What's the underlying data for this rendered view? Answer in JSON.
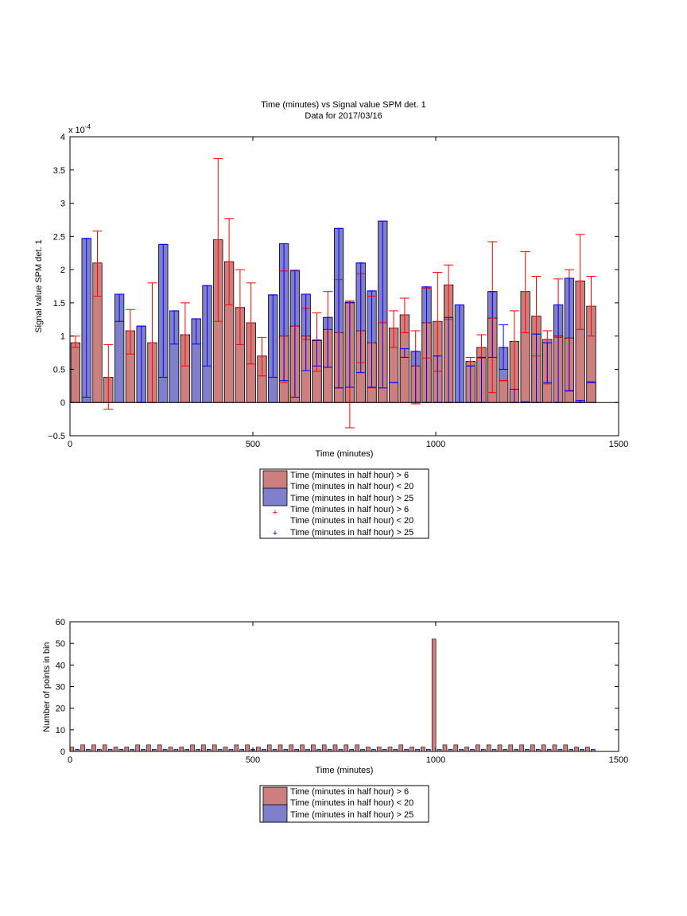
{
  "figure_title": [
    "Time (minutes) vs Signal value SPM det. 1",
    "Data for 2017/03/16"
  ],
  "colors": {
    "red_bar": "#cc7f7f",
    "blue_bar": "#7f7fcc",
    "red_err": "#ff0000",
    "blue_err": "#0000ff",
    "edge": "#000000"
  },
  "legend_top": [
    {
      "kind": "patch",
      "color": "red_bar",
      "text": [
        "Time (minutes in half hour) > 6",
        "Time (minutes in half hour) < 20"
      ]
    },
    {
      "kind": "patch",
      "color": "blue_bar",
      "text": [
        "Time (minutes in half hour) > 25"
      ]
    },
    {
      "kind": "marker",
      "color": "red_err",
      "text": [
        "Time (minutes in half hour) > 6",
        "Time (minutes in half hour) < 20"
      ]
    },
    {
      "kind": "marker",
      "color": "blue_err",
      "text": [
        "Time (minutes in half hour) > 25"
      ]
    }
  ],
  "legend_bottom": [
    {
      "kind": "patch",
      "color": "red_bar",
      "text": [
        "Time (minutes in half hour) > 6",
        "Time (minutes in half hour) < 20"
      ]
    },
    {
      "kind": "patch",
      "color": "blue_bar",
      "text": [
        "Time (minutes in half hour) > 25"
      ]
    }
  ],
  "chart_data": [
    {
      "type": "bar",
      "title": "Time (minutes) vs Signal value SPM det. 1",
      "subtitle": "Data for 2017/03/16",
      "xlabel": "Time (minutes)",
      "ylabel": "Signal value SPM det. 1",
      "exponent_label": "x 10",
      "exponent_power": "-4",
      "xlim": [
        0,
        1500
      ],
      "ylim": [
        -0.5,
        4
      ],
      "y_scale_note": "values in units of 1e-4",
      "xticks": [
        "0",
        "500",
        "1000",
        "1500"
      ],
      "yticks": [
        "−0.5",
        "0",
        "0.5",
        "1",
        "1.5",
        "2",
        "2.5",
        "3",
        "3.5",
        "4"
      ],
      "legend_position": "below",
      "series": [
        {
          "name": "Time (minutes in half hour) > 6 Time (minutes in half hour) < 20",
          "color": "red_bar",
          "x": [
            15,
            75,
            105,
            165,
            225,
            315,
            405,
            435,
            465,
            495,
            525,
            585,
            615,
            645,
            675,
            705,
            735,
            765,
            795,
            825,
            855,
            885,
            915,
            945,
            975,
            1005,
            1035,
            1095,
            1125,
            1155,
            1185,
            1215,
            1245,
            1275,
            1305,
            1335,
            1365,
            1395,
            1425
          ],
          "values": [
            0.9,
            2.1,
            0.38,
            1.08,
            0.9,
            1.02,
            2.45,
            2.12,
            1.43,
            1.2,
            0.7,
            1.0,
            1.15,
            1.0,
            0.93,
            1.1,
            1.05,
            1.5,
            1.08,
            0.9,
            1.2,
            1.12,
            1.32,
            0.55,
            1.2,
            1.22,
            1.77,
            0.62,
            0.83,
            1.27,
            0.33,
            0.92,
            1.67,
            1.3,
            0.95,
            1.0,
            0.97,
            1.83,
            1.45
          ],
          "err_low": [
            0.83,
            1.6,
            -0.1,
            0.73,
            0.0,
            0.55,
            1.22,
            1.47,
            0.87,
            0.58,
            0.4,
            0.3,
            0.08,
            0.95,
            0.47,
            0.53,
            0.22,
            -0.38,
            0.6,
            0.22,
            1.2,
            0.83,
            1.05,
            -0.02,
            0.67,
            0.47,
            1.25,
            0.55,
            0.67,
            0.15,
            0.33,
            0.2,
            1.05,
            0.7,
            0.28,
            0.98,
            0.17,
            1.1,
            1.0
          ],
          "err_high": [
            1.0,
            2.58,
            0.87,
            1.4,
            1.8,
            1.5,
            3.67,
            2.77,
            2.0,
            1.8,
            0.98,
            1.98,
            1.98,
            1.42,
            1.35,
            1.67,
            1.85,
            1.53,
            1.94,
            1.6,
            1.2,
            1.38,
            1.57,
            1.08,
            1.72,
            1.96,
            2.07,
            0.68,
            1.02,
            2.42,
            0.33,
            1.38,
            2.27,
            1.9,
            1.08,
            1.86,
            2.0,
            2.53,
            1.9
          ]
        },
        {
          "name": "Time (minutes in half hour) > 25",
          "color": "blue_bar",
          "x": [
            45,
            135,
            195,
            255,
            285,
            345,
            375,
            555,
            585,
            615,
            645,
            675,
            705,
            735,
            765,
            795,
            825,
            855,
            885,
            915,
            945,
            975,
            1005,
            1035,
            1065,
            1095,
            1125,
            1155,
            1185,
            1215,
            1245,
            1275,
            1305,
            1335,
            1365,
            1395,
            1425
          ],
          "values": [
            2.47,
            1.63,
            1.15,
            2.38,
            1.38,
            1.26,
            1.76,
            1.62,
            2.39,
            1.99,
            1.63,
            0.94,
            1.28,
            2.62,
            1.51,
            2.1,
            1.68,
            2.73,
            0.3,
            0.81,
            0.77,
            1.74,
            0.7,
            1.28,
            1.47,
            0.55,
            0.68,
            1.67,
            0.83,
            0.2,
            0.01,
            1.03,
            0.9,
            1.47,
            1.87,
            0.03,
            0.31
          ],
          "err_low": [
            0.08,
            1.22,
            0.0,
            0.38,
            0.88,
            0.88,
            0.55,
            0.38,
            0.33,
            0.08,
            0.48,
            0.55,
            0.53,
            0.22,
            0.23,
            0.45,
            0.23,
            0.22,
            0.3,
            0.68,
            0.0,
            0.0,
            0.0,
            0.0,
            0.0,
            0.0,
            0.0,
            0.68,
            0.5,
            0.0,
            0.0,
            0.0,
            0.3,
            0.0,
            0.18,
            0.0,
            0.3
          ],
          "err_high": [
            2.47,
            1.63,
            1.15,
            2.38,
            1.38,
            1.26,
            1.76,
            1.62,
            2.39,
            1.99,
            1.63,
            0.94,
            1.28,
            2.62,
            1.51,
            2.1,
            1.68,
            2.73,
            0.3,
            0.81,
            0.77,
            1.74,
            0.7,
            1.28,
            1.47,
            0.55,
            0.68,
            1.67,
            1.17,
            0.2,
            0.01,
            1.03,
            0.9,
            1.47,
            1.87,
            0.03,
            0.31
          ]
        }
      ]
    },
    {
      "type": "bar",
      "xlabel": "Time (minutes)",
      "ylabel": "Number of points in bin",
      "xlim": [
        0,
        1500
      ],
      "ylim": [
        0,
        60
      ],
      "xticks": [
        "0",
        "500",
        "1000",
        "1500"
      ],
      "yticks": [
        "0",
        "10",
        "20",
        "30",
        "40",
        "50",
        "60"
      ],
      "legend_position": "below",
      "series": [
        {
          "name": "Time (minutes in half hour) > 6 Time (minutes in half hour) < 20",
          "color": "red_bar",
          "x": [
            5,
            35,
            65,
            95,
            125,
            155,
            185,
            215,
            245,
            275,
            305,
            335,
            365,
            395,
            425,
            455,
            485,
            515,
            545,
            575,
            605,
            635,
            665,
            695,
            725,
            755,
            785,
            815,
            845,
            875,
            905,
            935,
            965,
            995,
            1025,
            1055,
            1085,
            1115,
            1145,
            1175,
            1205,
            1235,
            1265,
            1295,
            1325,
            1355,
            1385,
            1415
          ],
          "values": [
            2,
            3,
            3,
            3,
            2,
            2,
            3,
            3,
            3,
            2,
            2,
            3,
            3,
            3,
            2,
            3,
            3,
            2,
            3,
            3,
            3,
            3,
            3,
            3,
            3,
            3,
            3,
            2,
            2,
            2,
            3,
            2,
            2,
            52,
            3,
            3,
            2,
            3,
            3,
            3,
            3,
            3,
            3,
            3,
            3,
            3,
            2,
            2
          ]
        },
        {
          "name": "Time (minutes in half hour) > 25",
          "color": "blue_bar",
          "x": [
            20,
            50,
            80,
            110,
            140,
            170,
            200,
            230,
            260,
            290,
            320,
            350,
            380,
            410,
            440,
            470,
            500,
            530,
            560,
            590,
            620,
            650,
            680,
            710,
            740,
            770,
            800,
            830,
            860,
            890,
            920,
            950,
            980,
            1010,
            1040,
            1070,
            1100,
            1130,
            1160,
            1190,
            1220,
            1250,
            1280,
            1310,
            1340,
            1370,
            1400,
            1430
          ],
          "values": [
            1,
            1,
            1,
            1,
            1,
            1,
            1,
            1,
            1,
            1,
            1,
            1,
            1,
            1,
            1,
            1,
            1,
            1,
            1,
            1,
            1,
            1,
            1,
            1,
            1,
            1,
            1,
            1,
            1,
            1,
            1,
            1,
            1,
            1,
            1,
            1,
            1,
            1,
            1,
            1,
            1,
            1,
            1,
            1,
            1,
            1,
            1,
            1
          ]
        }
      ]
    }
  ]
}
